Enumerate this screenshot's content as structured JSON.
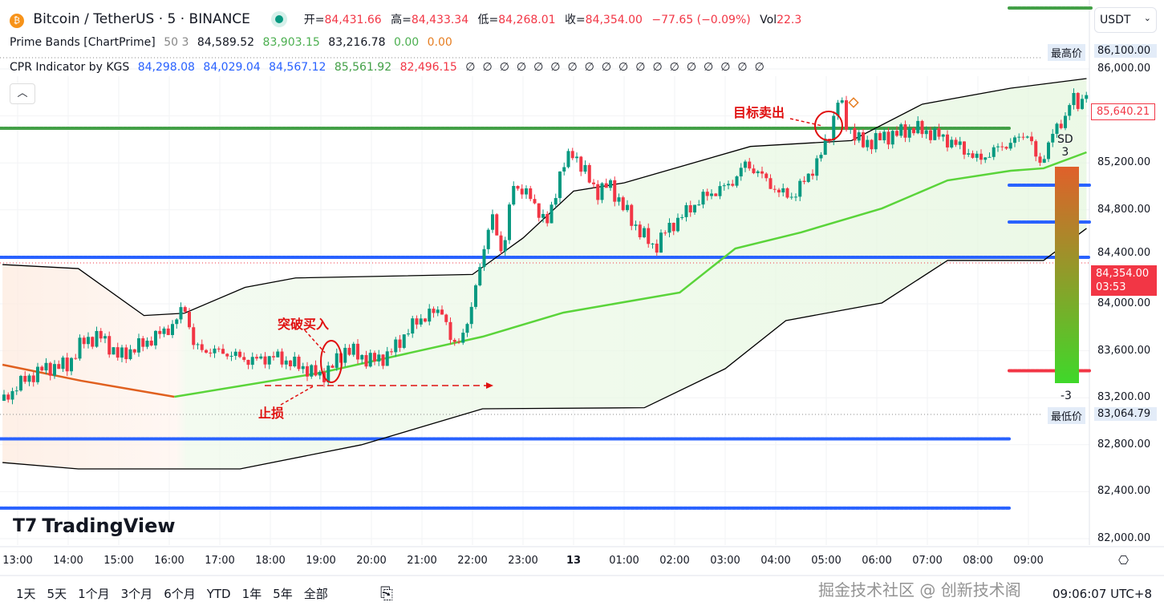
{
  "header": {
    "symbol": "Bitcoin / TetherUS · 5 · BINANCE",
    "open_label": "开=",
    "open": "84,431.66",
    "high_label": "高=",
    "high": "84,433.34",
    "low_label": "低=",
    "low": "84,268.01",
    "close_label": "收=",
    "close": "84,354.00",
    "change": "−77.65 (−0.09%)",
    "vol_label": "Vol",
    "vol": "22.3"
  },
  "indicators": [
    {
      "name": "Prime Bands [ChartPrime]",
      "params": "50 3",
      "values": [
        "84,589.52",
        "83,903.15",
        "83,216.78",
        "0.00",
        "0.00"
      ]
    },
    {
      "name": "CPR Indicator by KGS",
      "values": [
        "84,298.08",
        "84,029.04",
        "84,567.12",
        "85,561.92",
        "82,496.15"
      ],
      "na_symbol": "∅",
      "na_count": 18
    }
  ],
  "currency": "USDT",
  "y_ticks": [
    "86,000.00",
    "85,200.00",
    "84,800.00",
    "84,400.00",
    "84,000.00",
    "83,600.00",
    "83,200.00",
    "82,800.00",
    "82,400.00",
    "82,000.00"
  ],
  "tags": {
    "high_label": "最高价",
    "high": "86,100.00",
    "low_label": "最低价",
    "low": "83,064.79",
    "last": "85,640.21",
    "current": "84,354.00",
    "countdown": "03:53"
  },
  "x_ticks": [
    "13:00",
    "14:00",
    "15:00",
    "16:00",
    "17:00",
    "18:00",
    "19:00",
    "20:00",
    "21:00",
    "22:00",
    "23:00",
    "13",
    "01:00",
    "02:00",
    "03:00",
    "04:00",
    "05:00",
    "06:00",
    "07:00",
    "08:00",
    "09:00"
  ],
  "ranges": [
    "1天",
    "5天",
    "1个月",
    "3个月",
    "6个月",
    "YTD",
    "1年",
    "5年",
    "全部"
  ],
  "annotations": {
    "sell": "目标卖出",
    "buy": "突破买入",
    "stop": "止损",
    "sd_top": "SD",
    "sd_top_n": "3",
    "sd_bottom": "-3"
  },
  "logo": "TradingView",
  "watermark": "掘金技术社区 @ 创新技术阁",
  "clock": "09:06:07 UTC+8",
  "colors": {
    "up": "#089981",
    "down": "#f23645",
    "mid": "#4caf50",
    "band": "#000000",
    "blue": "#2962ff"
  },
  "chart_data": {
    "type": "candlestick",
    "x_unit": "hours since 13:00",
    "ylim": [
      82000,
      86000
    ],
    "price_path": [
      [
        -0.27,
        83174
      ],
      [
        0,
        83310
      ],
      [
        0.5,
        83447
      ],
      [
        1,
        83480
      ],
      [
        1.3,
        83686
      ],
      [
        1.65,
        83720
      ],
      [
        2,
        83550
      ],
      [
        2.6,
        83686
      ],
      [
        3.1,
        83822
      ],
      [
        3.3,
        83993
      ],
      [
        3.5,
        83618
      ],
      [
        4.1,
        83584
      ],
      [
        4.6,
        83515
      ],
      [
        5.1,
        83550
      ],
      [
        5.7,
        83447
      ],
      [
        6,
        83379
      ],
      [
        6.25,
        83480
      ],
      [
        6.5,
        83618
      ],
      [
        6.95,
        83515
      ],
      [
        7.3,
        83550
      ],
      [
        7.9,
        83857
      ],
      [
        8.4,
        83959
      ],
      [
        8.6,
        83618
      ],
      [
        8.95,
        83857
      ],
      [
        9.1,
        84266
      ],
      [
        9.4,
        84744
      ],
      [
        9.6,
        84403
      ],
      [
        9.8,
        85017
      ],
      [
        10.05,
        84949
      ],
      [
        10.5,
        84676
      ],
      [
        10.75,
        85154
      ],
      [
        11,
        85290
      ],
      [
        11.45,
        84949
      ],
      [
        11.7,
        85017
      ],
      [
        12.2,
        84676
      ],
      [
        12.6,
        84471
      ],
      [
        12.8,
        84608
      ],
      [
        13.3,
        84812
      ],
      [
        13.6,
        84915
      ],
      [
        14.1,
        85017
      ],
      [
        14.4,
        85188
      ],
      [
        14.65,
        85120
      ],
      [
        15.05,
        84949
      ],
      [
        15.35,
        84915
      ],
      [
        15.85,
        85222
      ],
      [
        16.1,
        85495
      ],
      [
        16.25,
        85768
      ],
      [
        16.4,
        85529
      ],
      [
        16.7,
        85358
      ],
      [
        17.2,
        85427
      ],
      [
        17.75,
        85495
      ],
      [
        18.25,
        85427
      ],
      [
        18.7,
        85324
      ],
      [
        19,
        85222
      ],
      [
        19.4,
        85324
      ],
      [
        19.75,
        85392
      ],
      [
        20,
        85461
      ],
      [
        20.2,
        85154
      ],
      [
        20.45,
        85427
      ],
      [
        20.7,
        85563
      ],
      [
        20.85,
        85768
      ],
      [
        21,
        85666
      ],
      [
        21.15,
        85836
      ]
    ],
    "upper_band": [
      [
        -0.3,
        84334
      ],
      [
        1.2,
        84300
      ],
      [
        2.5,
        83900
      ],
      [
        3.3,
        83920
      ],
      [
        4.5,
        84140
      ],
      [
        5.5,
        84220
      ],
      [
        9,
        84250
      ],
      [
        10,
        84560
      ],
      [
        11,
        84960
      ],
      [
        12,
        85030
      ],
      [
        14.5,
        85340
      ],
      [
        16.5,
        85390
      ],
      [
        17.9,
        85700
      ],
      [
        19.65,
        85836
      ],
      [
        21.15,
        85918
      ]
    ],
    "lower_band": [
      [
        -0.3,
        82648
      ],
      [
        1.2,
        82594
      ],
      [
        4.4,
        82594
      ],
      [
        6.8,
        82799
      ],
      [
        9.2,
        83106
      ],
      [
        12.4,
        83115
      ],
      [
        14,
        83447
      ],
      [
        15.2,
        83857
      ],
      [
        17.1,
        84007
      ],
      [
        18.4,
        84369
      ],
      [
        20.3,
        84369
      ],
      [
        21.15,
        84642
      ]
    ],
    "mid_line": [
      [
        -0.3,
        83481
      ],
      [
        1.25,
        83345
      ],
      [
        3.1,
        83208
      ],
      [
        6,
        83413
      ],
      [
        9.2,
        83720
      ],
      [
        10.8,
        83925
      ],
      [
        13.1,
        84096
      ],
      [
        14.2,
        84471
      ],
      [
        15.5,
        84608
      ],
      [
        17.1,
        84812
      ],
      [
        18.4,
        85051
      ],
      [
        19.65,
        85133
      ],
      [
        20.3,
        85154
      ],
      [
        21.15,
        85290
      ]
    ],
    "levels": [
      {
        "price": 86000,
        "color": "green"
      },
      {
        "price": 85495,
        "color": "green"
      },
      {
        "price": 85010,
        "color": "blue"
      },
      {
        "price": 84696,
        "color": "blue"
      },
      {
        "price": 84396,
        "color": "blue"
      },
      {
        "price": 83430,
        "color": "red"
      },
      {
        "price": 82850,
        "color": "blue"
      },
      {
        "price": 82260,
        "color": "blue"
      }
    ]
  }
}
